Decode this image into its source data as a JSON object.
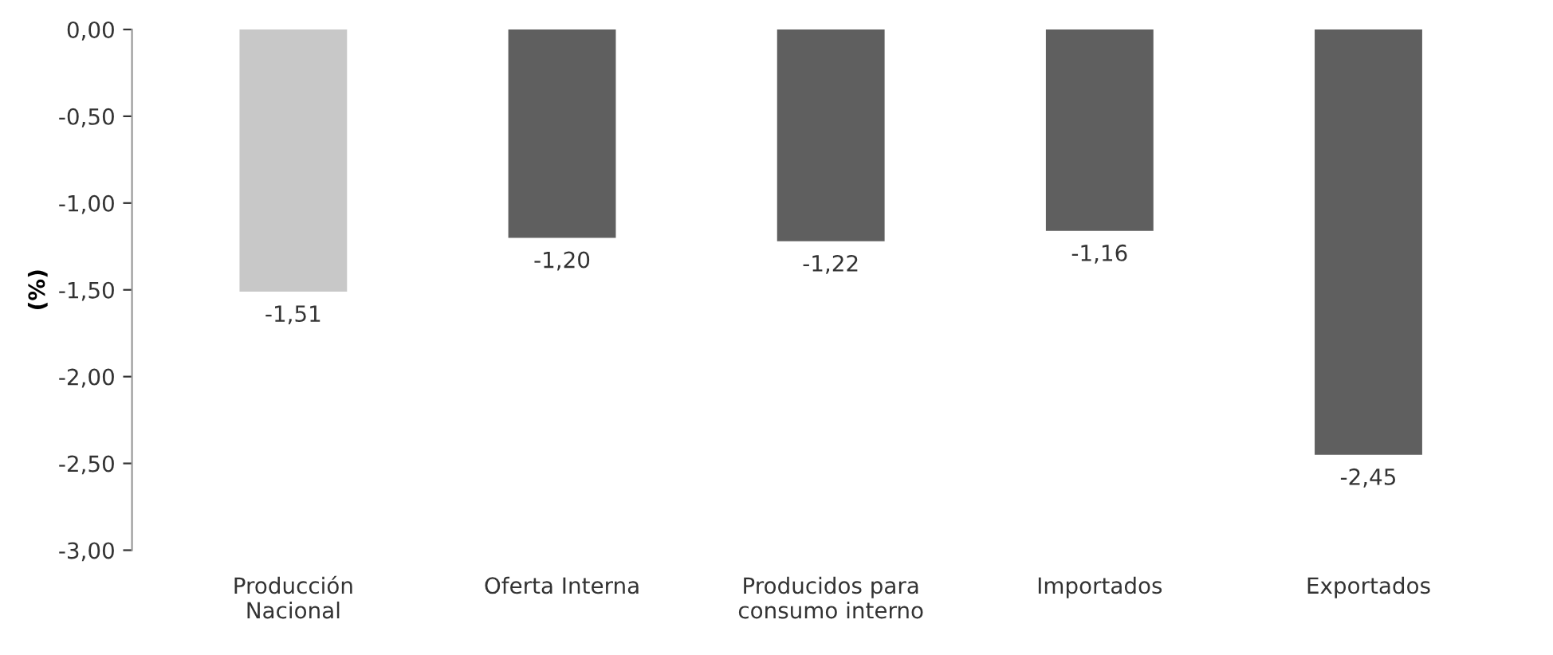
{
  "chart_data": {
    "type": "bar",
    "ylabel": "(%)",
    "categories": [
      "Producción\nNacional",
      "Oferta Interna",
      "Producidos para\nconsumo interno",
      "Importados",
      "Exportados"
    ],
    "values": [
      -1.51,
      -1.2,
      -1.22,
      -1.16,
      -2.45
    ],
    "colors": [
      "#c8c8c8",
      "#5f5f5f",
      "#5f5f5f",
      "#5f5f5f",
      "#5f5f5f"
    ],
    "value_labels": [
      "-1,51",
      "-1,20",
      "-1,22",
      "-1,16",
      "-2,45"
    ],
    "ylim": [
      -3,
      0
    ],
    "yticks": [
      {
        "value": 0,
        "label": "0,00"
      },
      {
        "value": -0.5,
        "label": "-0,50"
      },
      {
        "value": -1,
        "label": "-1,00"
      },
      {
        "value": -1.5,
        "label": "-1,50"
      },
      {
        "value": -2,
        "label": "-2,00"
      },
      {
        "value": -2.5,
        "label": "-2,50"
      },
      {
        "value": -3,
        "label": "-3,00"
      }
    ],
    "grid": false
  }
}
